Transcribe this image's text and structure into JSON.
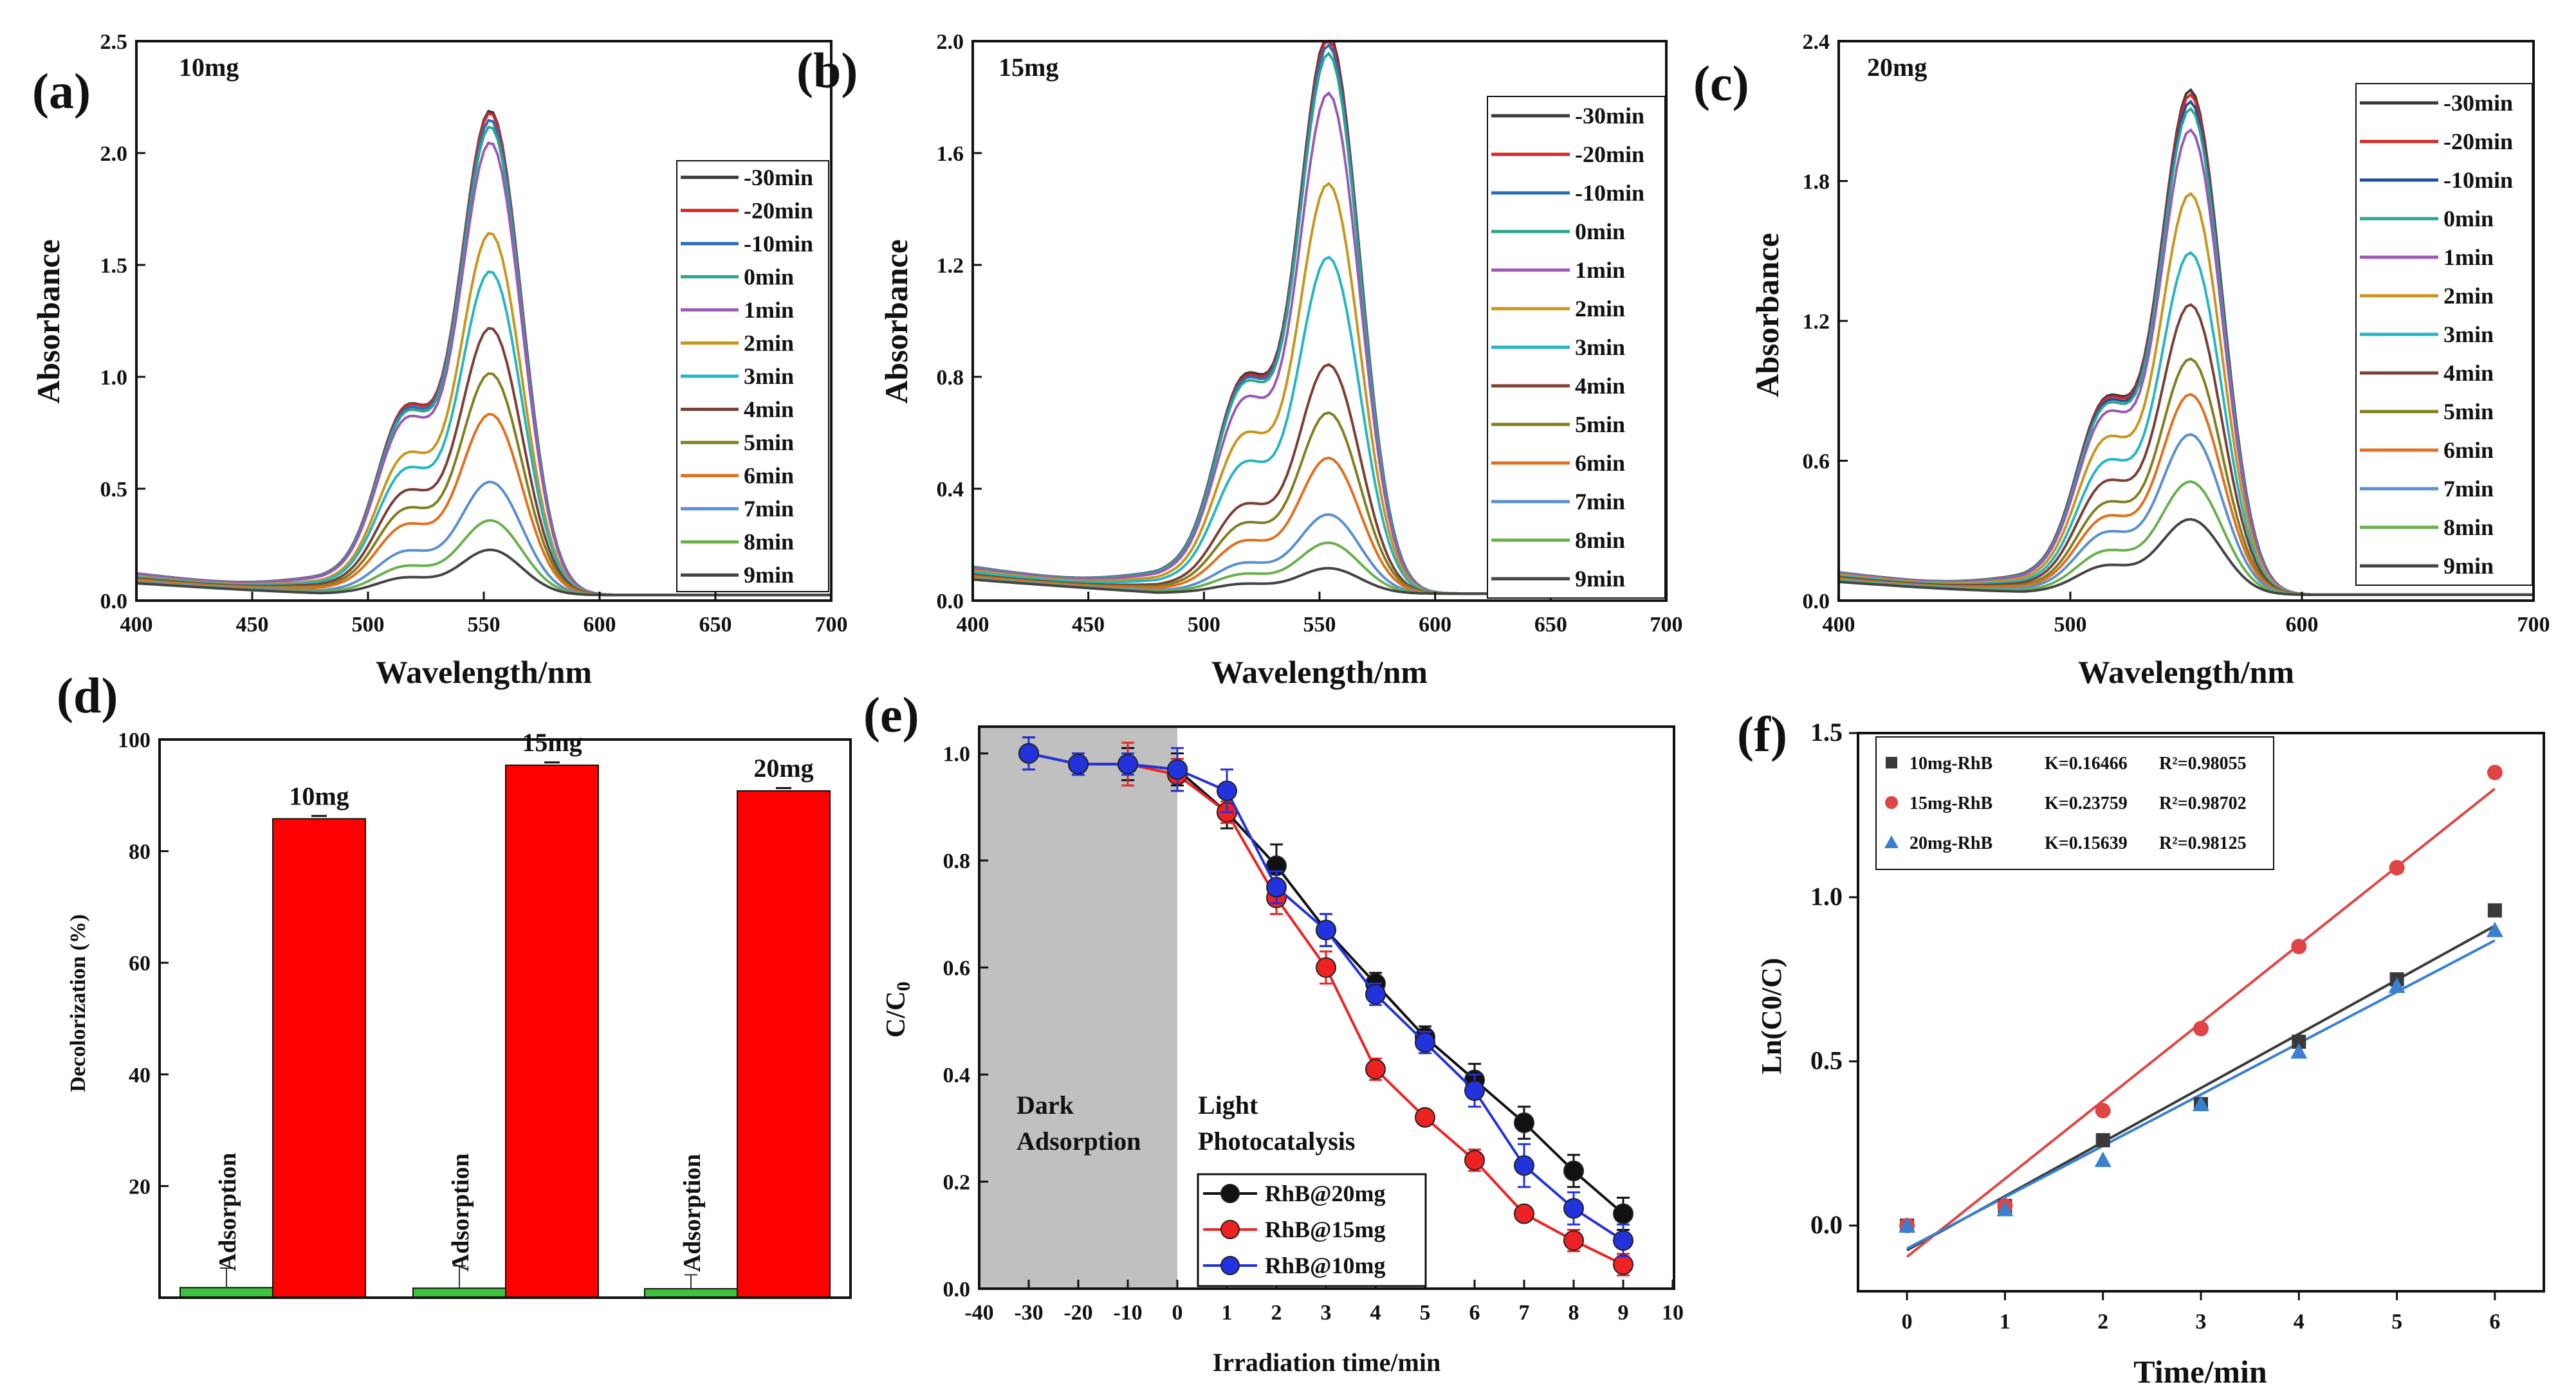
{
  "chart_data": [
    {
      "id": "a",
      "type": "line",
      "panel_label": "(a)",
      "title": "10mg",
      "xlabel": "Wavelength/nm",
      "ylabel": "Absorbance",
      "xlim": [
        400,
        700
      ],
      "ylim": [
        0,
        2.5
      ],
      "xticks": [
        "400",
        "450",
        "500",
        "550",
        "600",
        "650",
        "700"
      ],
      "yticks": [
        "0.0",
        "0.5",
        "1.0",
        "1.5",
        "2.0",
        "2.5"
      ],
      "peak_x": 553,
      "series": [
        {
          "name": "-30min",
          "peak": 2.14,
          "color": "#3a3a3a"
        },
        {
          "name": "-20min",
          "peak": 2.13,
          "color": "#d62728"
        },
        {
          "name": "-10min",
          "peak": 2.1,
          "color": "#2b6cb8"
        },
        {
          "name": "0min",
          "peak": 2.07,
          "color": "#2ca58d"
        },
        {
          "name": "1min",
          "peak": 2.0,
          "color": "#9b59b6"
        },
        {
          "name": "2min",
          "peak": 1.6,
          "color": "#c8961c"
        },
        {
          "name": "3min",
          "peak": 1.43,
          "color": "#25b5c4"
        },
        {
          "name": "4min",
          "peak": 1.18,
          "color": "#7b3f35"
        },
        {
          "name": "5min",
          "peak": 0.98,
          "color": "#808020"
        },
        {
          "name": "6min",
          "peak": 0.8,
          "color": "#e07020"
        },
        {
          "name": "7min",
          "peak": 0.5,
          "color": "#5a8fd0"
        },
        {
          "name": "8min",
          "peak": 0.33,
          "color": "#6ab04c"
        },
        {
          "name": "9min",
          "peak": 0.2,
          "color": "#444444"
        }
      ]
    },
    {
      "id": "b",
      "type": "line",
      "panel_label": "(b)",
      "title": "15mg",
      "xlabel": "Wavelength/nm",
      "ylabel": "Absorbance",
      "xlim": [
        400,
        700
      ],
      "ylim": [
        0,
        2.0
      ],
      "xticks": [
        "400",
        "450",
        "500",
        "550",
        "600",
        "650",
        "700"
      ],
      "yticks": [
        "0.0",
        "0.4",
        "0.8",
        "1.2",
        "1.6",
        "2.0"
      ],
      "peak_x": 554,
      "series": [
        {
          "name": "-30min",
          "peak": 1.98,
          "color": "#3a3a3a"
        },
        {
          "name": "-20min",
          "peak": 1.96,
          "color": "#d62728"
        },
        {
          "name": "-10min",
          "peak": 1.94,
          "color": "#2b6cb8"
        },
        {
          "name": "0min",
          "peak": 1.91,
          "color": "#2ca58d"
        },
        {
          "name": "1min",
          "peak": 1.77,
          "color": "#9b59b6"
        },
        {
          "name": "2min",
          "peak": 1.45,
          "color": "#c8961c"
        },
        {
          "name": "3min",
          "peak": 1.19,
          "color": "#25b5c4"
        },
        {
          "name": "4min",
          "peak": 0.81,
          "color": "#7b3f35"
        },
        {
          "name": "5min",
          "peak": 0.64,
          "color": "#808020"
        },
        {
          "name": "6min",
          "peak": 0.48,
          "color": "#e07020"
        },
        {
          "name": "7min",
          "peak": 0.28,
          "color": "#5a8fd0"
        },
        {
          "name": "8min",
          "peak": 0.18,
          "color": "#6ab04c"
        },
        {
          "name": "9min",
          "peak": 0.09,
          "color": "#444444"
        }
      ]
    },
    {
      "id": "c",
      "type": "line",
      "panel_label": "(c)",
      "title": "20mg",
      "xlabel": "Wavelength/nm",
      "ylabel": "Absorbance",
      "xlim": [
        400,
        700
      ],
      "ylim": [
        0,
        2.4
      ],
      "xticks": [
        "400",
        "500",
        "600",
        "700"
      ],
      "yticks": [
        "0.0",
        "0.6",
        "1.2",
        "1.8",
        "2.4"
      ],
      "peak_x": 552,
      "series": [
        {
          "name": "-30min",
          "peak": 2.14,
          "color": "#3a3a3a"
        },
        {
          "name": "-20min",
          "peak": 2.12,
          "color": "#d62728"
        },
        {
          "name": "-10min",
          "peak": 2.09,
          "color": "#1f4e9c"
        },
        {
          "name": "0min",
          "peak": 2.06,
          "color": "#2ca58d"
        },
        {
          "name": "1min",
          "peak": 1.97,
          "color": "#9b59b6"
        },
        {
          "name": "2min",
          "peak": 1.7,
          "color": "#c8961c"
        },
        {
          "name": "3min",
          "peak": 1.45,
          "color": "#25b5c4"
        },
        {
          "name": "4min",
          "peak": 1.23,
          "color": "#7b3f35"
        },
        {
          "name": "5min",
          "peak": 1.0,
          "color": "#808020"
        },
        {
          "name": "6min",
          "peak": 0.85,
          "color": "#e07020"
        },
        {
          "name": "7min",
          "peak": 0.68,
          "color": "#5a8fd0"
        },
        {
          "name": "8min",
          "peak": 0.48,
          "color": "#6ab04c"
        },
        {
          "name": "9min",
          "peak": 0.32,
          "color": "#444444"
        }
      ]
    },
    {
      "id": "d",
      "type": "bar",
      "panel_label": "(d)",
      "ylabel": "Decolorization (%)",
      "ylim": [
        0,
        100
      ],
      "yticks": [
        "20",
        "40",
        "60",
        "80",
        "100"
      ],
      "groups": [
        "10mg",
        "15mg",
        "20mg"
      ],
      "adsorption_label": "Adsorption",
      "adsorption": [
        1.8,
        1.7,
        1.6
      ],
      "adsorption_err": [
        3.5,
        4.0,
        2.5
      ],
      "photocatalysis": [
        85.8,
        95.4,
        90.8
      ],
      "photocatalysis_err": [
        0.5,
        0.5,
        0.5
      ],
      "colors": {
        "adsorption": "#3cc43c",
        "photocatalysis": "#ff0000"
      }
    },
    {
      "id": "e",
      "type": "line",
      "panel_label": "(e)",
      "xlabel": "Irradiation time/min",
      "ylabel": "C/C0",
      "xlim": [
        -40,
        10
      ],
      "ylim": [
        0,
        1.05
      ],
      "xticks": [
        "-40",
        "-30",
        "-20",
        "-10",
        "0",
        "1",
        "2",
        "3",
        "4",
        "5",
        "6",
        "7",
        "8",
        "9",
        "10"
      ],
      "yticks": [
        "0.0",
        "0.2",
        "0.4",
        "0.6",
        "0.8",
        "1.0"
      ],
      "dark_label": [
        "Dark",
        "Adsorption"
      ],
      "light_label": [
        "Light",
        "Photocatalysis"
      ],
      "x": [
        "-30",
        "-20",
        "-10",
        "0",
        "1",
        "2",
        "3",
        "4",
        "5",
        "6",
        "7",
        "8",
        "9"
      ],
      "series": [
        {
          "name": "RhB@20mg",
          "color": "#111111",
          "values": [
            1.0,
            0.98,
            0.98,
            0.97,
            0.89,
            0.79,
            0.67,
            0.57,
            0.47,
            0.39,
            0.31,
            0.22,
            0.14
          ],
          "errors": [
            0.03,
            0.02,
            0.03,
            0.03,
            0.03,
            0.04,
            0.03,
            0.02,
            0.02,
            0.03,
            0.03,
            0.03,
            0.03
          ]
        },
        {
          "name": "RhB@15mg",
          "color": "#ee2222",
          "values": [
            1.0,
            0.98,
            0.98,
            0.96,
            0.89,
            0.73,
            0.6,
            0.41,
            0.32,
            0.24,
            0.14,
            0.09,
            0.045
          ],
          "errors": [
            0.03,
            0.02,
            0.04,
            0.03,
            0.02,
            0.03,
            0.03,
            0.02,
            0.01,
            0.02,
            0.01,
            0.02,
            0.02
          ]
        },
        {
          "name": "RhB@10mg",
          "color": "#2233dd",
          "values": [
            1.0,
            0.98,
            0.98,
            0.97,
            0.93,
            0.75,
            0.67,
            0.55,
            0.46,
            0.37,
            0.23,
            0.15,
            0.09
          ],
          "errors": [
            0.03,
            0.02,
            0.02,
            0.04,
            0.04,
            0.03,
            0.03,
            0.02,
            0.02,
            0.03,
            0.04,
            0.03,
            0.03
          ]
        }
      ]
    },
    {
      "id": "f",
      "type": "scatter",
      "panel_label": "(f)",
      "xlabel": "Time/min",
      "ylabel": "Ln(C0/C)",
      "xlim": [
        -0.5,
        6.5
      ],
      "ylim": [
        -0.2,
        1.5
      ],
      "xticks": [
        "0",
        "1",
        "2",
        "3",
        "4",
        "5",
        "6"
      ],
      "yticks": [
        "0.0",
        "0.5",
        "1.0",
        "1.5"
      ],
      "x": [
        0,
        1,
        2,
        3,
        4,
        5,
        6
      ],
      "series": [
        {
          "name": "10mg-RhB",
          "K": "K=0.16466",
          "R2": "R²=0.98055",
          "marker": "square",
          "color": "#3a3a3a",
          "values": [
            0.0,
            0.06,
            0.26,
            0.37,
            0.56,
            0.75,
            0.96
          ],
          "fit_intercept": -0.075
        },
        {
          "name": "15mg-RhB",
          "K": "K=0.23759",
          "R2": "R²=0.98702",
          "marker": "circle",
          "color": "#e04545",
          "values": [
            0.0,
            0.06,
            0.35,
            0.6,
            0.85,
            1.09,
            1.38
          ],
          "fit_intercept": -0.095
        },
        {
          "name": "20mg-RhB",
          "K": "K=0.15639",
          "R2": "R²=0.98125",
          "marker": "triangle",
          "color": "#3a7fd0",
          "values": [
            0.0,
            0.05,
            0.2,
            0.37,
            0.53,
            0.73,
            0.9
          ],
          "fit_intercept": -0.07
        }
      ]
    }
  ]
}
